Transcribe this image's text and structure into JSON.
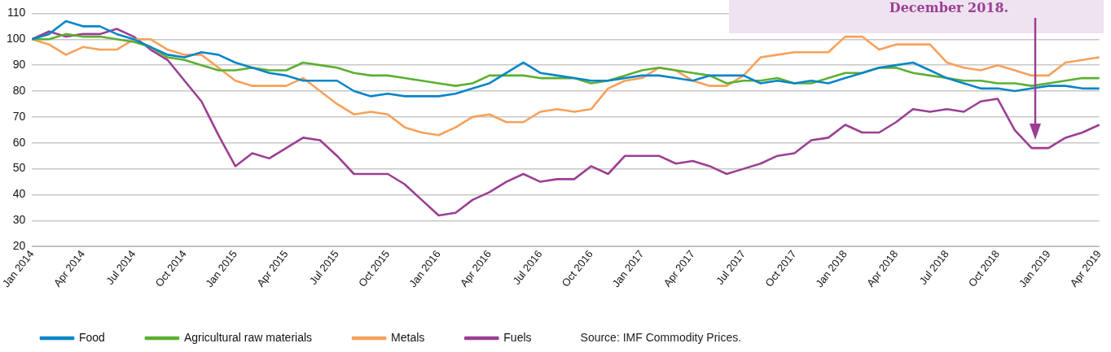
{
  "chart_data": {
    "type": "line",
    "categories": [
      "Jan 2014",
      null,
      null,
      "Apr 2014",
      null,
      null,
      "Jul 2014",
      null,
      null,
      "Oct 2014",
      null,
      null,
      "Jan 2015",
      null,
      null,
      "Apr 2015",
      null,
      null,
      "Jul 2015",
      null,
      null,
      "Oct 2015",
      null,
      null,
      "Jan 2016",
      null,
      null,
      "Apr 2016",
      null,
      null,
      "Jul 2016",
      null,
      null,
      "Oct 2016",
      null,
      null,
      "Jan 2017",
      null,
      null,
      "Apr 2017",
      null,
      null,
      "Jul 2017",
      null,
      null,
      "Oct 2017",
      null,
      null,
      "Jan 2018",
      null,
      null,
      "Apr 2018",
      null,
      null,
      "Jul 2018",
      null,
      null,
      "Oct 2018",
      null,
      null,
      "Jan 2019",
      null,
      null,
      "Apr 2019"
    ],
    "series": [
      {
        "name": "Food",
        "color": "#0a85c8",
        "values": [
          100,
          102,
          107,
          105,
          105,
          102,
          100,
          97,
          94,
          93,
          95,
          94,
          91,
          89,
          87,
          86,
          84,
          84,
          84,
          80,
          78,
          79,
          78,
          78,
          78,
          79,
          81,
          83,
          87,
          91,
          87,
          86,
          85,
          84,
          84,
          85,
          86,
          86,
          85,
          84,
          86,
          86,
          86,
          83,
          84,
          83,
          84,
          83,
          85,
          87,
          89,
          90,
          91,
          88,
          85,
          83,
          81,
          81,
          80,
          81,
          82,
          82,
          81,
          81
        ]
      },
      {
        "name": "Agricultural raw materials",
        "color": "#5bb031",
        "values": [
          100,
          100,
          102,
          101,
          101,
          100,
          99,
          97,
          93,
          92,
          90,
          88,
          88,
          89,
          88,
          88,
          91,
          90,
          89,
          87,
          86,
          86,
          85,
          84,
          83,
          82,
          83,
          86,
          86,
          86,
          85,
          85,
          85,
          83,
          84,
          86,
          88,
          89,
          88,
          87,
          86,
          83,
          84,
          84,
          85,
          83,
          83,
          85,
          87,
          87,
          89,
          89,
          87,
          86,
          85,
          84,
          84,
          83,
          83,
          82,
          83,
          84,
          85,
          85
        ]
      },
      {
        "name": "Metals",
        "color": "#f7a15a",
        "values": [
          100,
          98,
          94,
          97,
          96,
          96,
          100,
          100,
          96,
          94,
          94,
          89,
          84,
          82,
          82,
          82,
          85,
          80,
          75,
          71,
          72,
          71,
          66,
          64,
          63,
          66,
          70,
          71,
          68,
          68,
          72,
          73,
          72,
          73,
          81,
          84,
          85,
          89,
          88,
          84,
          82,
          82,
          86,
          93,
          94,
          95,
          95,
          95,
          101,
          101,
          96,
          98,
          98,
          98,
          91,
          89,
          88,
          90,
          88,
          86,
          86,
          91,
          92,
          93
        ]
      },
      {
        "name": "Fuels",
        "color": "#9b3f93",
        "values": [
          100,
          103,
          101,
          102,
          102,
          104,
          101,
          96,
          92,
          84,
          76,
          63,
          51,
          56,
          54,
          58,
          62,
          61,
          55,
          48,
          48,
          48,
          44,
          38,
          32,
          33,
          38,
          41,
          45,
          48,
          45,
          46,
          46,
          51,
          48,
          55,
          55,
          55,
          52,
          53,
          51,
          48,
          50,
          52,
          55,
          56,
          61,
          62,
          67,
          64,
          64,
          68,
          73,
          72,
          73,
          72,
          76,
          77,
          65,
          58,
          58,
          62,
          64,
          67
        ]
      }
    ],
    "ylim": [
      20,
      110
    ],
    "yticks": [
      20,
      30,
      40,
      50,
      60,
      70,
      80,
      90,
      100,
      110
    ],
    "grid": "y",
    "legend": "bottom",
    "marker": "none",
    "line_style": "solid",
    "annotations": [
      "December 2018.",
      "Source: IMF Commodity Prices."
    ]
  }
}
